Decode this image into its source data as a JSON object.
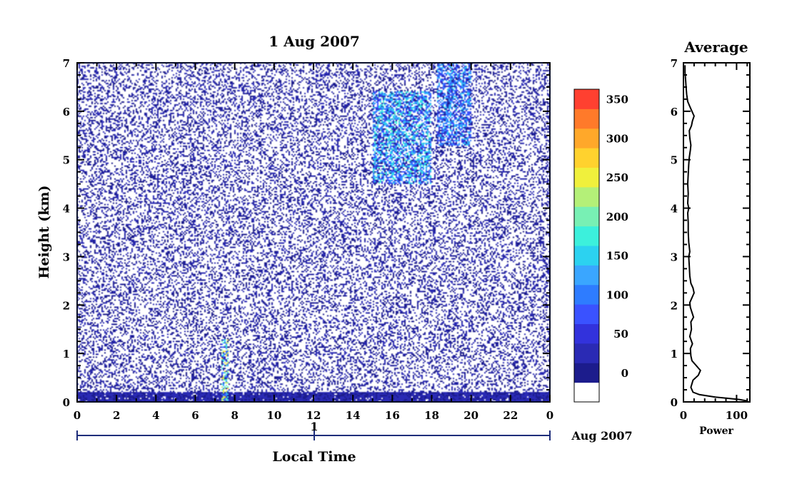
{
  "chart_data": [
    {
      "type": "heatmap",
      "title": "1 Aug 2007",
      "xlabel": "Local Time",
      "ylabel": "Height (km)",
      "x_ticks": [
        "0",
        "2",
        "4",
        "6",
        "8",
        "10",
        "12",
        "14",
        "16",
        "18",
        "20",
        "22",
        "0"
      ],
      "xlim": [
        0,
        24
      ],
      "y_ticks": [
        "0",
        "1",
        "2",
        "3",
        "4",
        "5",
        "6",
        "7"
      ],
      "ylim": [
        0,
        7
      ],
      "date_axis": {
        "day_label": "1",
        "month_label": "Aug 2007"
      },
      "colorbar": {
        "ticks": [
          "0",
          "50",
          "100",
          "150",
          "200",
          "250",
          "300",
          "350"
        ],
        "range": [
          0,
          380
        ],
        "colors": [
          "#ffffff",
          "#1c1c8c",
          "#2a2ab4",
          "#3232dc",
          "#3a52ff",
          "#2e7cff",
          "#3aa6ff",
          "#2cd2f0",
          "#3cf0dc",
          "#78f0b4",
          "#b4f078",
          "#f0f03c",
          "#ffd22e",
          "#ffa82a",
          "#ff7a2a",
          "#ff4030"
        ]
      },
      "features": [
        {
          "label": "noise",
          "x_range": [
            0,
            24
          ],
          "y_range": [
            0,
            7
          ],
          "power": 25
        },
        {
          "label": "boundary layer",
          "x_range": [
            0,
            24
          ],
          "y_range": [
            0,
            0.2
          ],
          "power": 30
        },
        {
          "label": "cloud cluster 18-20h",
          "x_range": [
            18.3,
            20
          ],
          "y_range": [
            5.3,
            7
          ],
          "power": 110
        },
        {
          "label": "cloud cluster 15-18h",
          "x_range": [
            15,
            18
          ],
          "y_range": [
            4.5,
            6.4
          ],
          "power": 130
        },
        {
          "label": "spike 7.5h",
          "x_range": [
            7.3,
            7.7
          ],
          "y_range": [
            0,
            1.3
          ],
          "power": 180
        }
      ]
    },
    {
      "type": "line",
      "title": "Average",
      "xlabel": "Power",
      "x_ticks": [
        "0",
        "100"
      ],
      "xlim": [
        0,
        125
      ],
      "y_ticks": [
        "0",
        "1",
        "2",
        "3",
        "4",
        "5",
        "6",
        "7"
      ],
      "ylim": [
        0,
        7
      ],
      "points": [
        [
          120,
          0.02
        ],
        [
          105,
          0.05
        ],
        [
          60,
          0.1
        ],
        [
          30,
          0.15
        ],
        [
          18,
          0.2
        ],
        [
          14,
          0.3
        ],
        [
          18,
          0.45
        ],
        [
          28,
          0.55
        ],
        [
          32,
          0.65
        ],
        [
          24,
          0.75
        ],
        [
          16,
          0.85
        ],
        [
          14,
          0.95
        ],
        [
          13,
          1.1
        ],
        [
          17,
          1.2
        ],
        [
          12,
          1.35
        ],
        [
          15,
          1.5
        ],
        [
          14,
          1.65
        ],
        [
          19,
          1.75
        ],
        [
          16,
          1.85
        ],
        [
          13,
          1.95
        ],
        [
          12,
          2.05
        ],
        [
          16,
          2.15
        ],
        [
          20,
          2.25
        ],
        [
          18,
          2.35
        ],
        [
          14,
          2.45
        ],
        [
          12,
          2.6
        ],
        [
          11,
          2.8
        ],
        [
          10,
          3.0
        ],
        [
          12,
          3.1
        ],
        [
          10,
          3.3
        ],
        [
          9,
          3.5
        ],
        [
          9,
          3.7
        ],
        [
          8,
          3.9
        ],
        [
          10,
          4.0
        ],
        [
          8,
          4.1
        ],
        [
          9,
          4.3
        ],
        [
          8,
          4.5
        ],
        [
          9,
          4.7
        ],
        [
          10,
          4.9
        ],
        [
          11,
          5.05
        ],
        [
          13,
          5.2
        ],
        [
          14,
          5.3
        ],
        [
          12,
          5.45
        ],
        [
          11,
          5.6
        ],
        [
          15,
          5.7
        ],
        [
          17,
          5.8
        ],
        [
          20,
          5.9
        ],
        [
          16,
          6.0
        ],
        [
          12,
          6.1
        ],
        [
          8,
          6.2
        ],
        [
          6,
          6.35
        ],
        [
          5,
          6.5
        ],
        [
          4,
          6.65
        ],
        [
          3,
          6.8
        ],
        [
          3,
          6.95
        ]
      ]
    }
  ]
}
